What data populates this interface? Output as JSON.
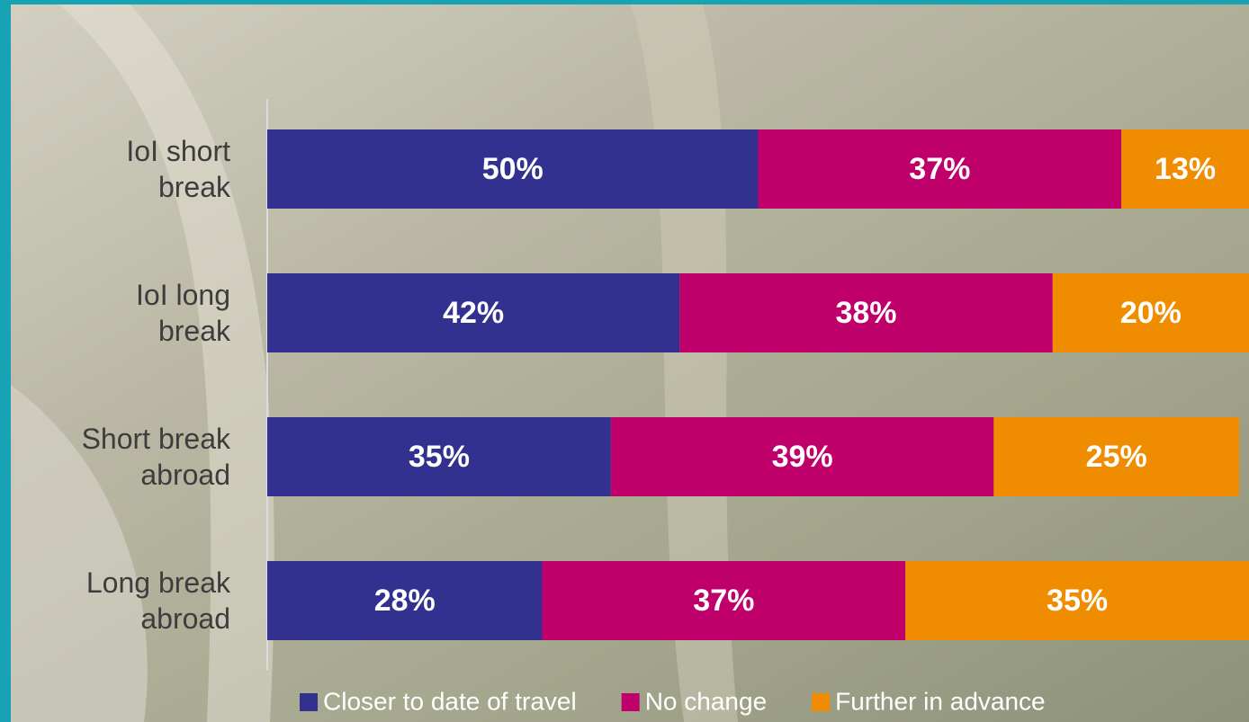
{
  "chart_data": {
    "type": "stacked-bar-horizontal",
    "categories": [
      "IoI short\nbreak",
      "IoI long\nbreak",
      "Short break\nabroad",
      "Long break\nabroad"
    ],
    "series": [
      {
        "name": "Closer to date of travel",
        "color": "#33318f",
        "values": [
          50,
          42,
          35,
          28
        ],
        "value_labels": [
          "50%",
          "42%",
          "35%",
          "28%"
        ]
      },
      {
        "name": "No change",
        "color": "#c0006a",
        "values": [
          37,
          38,
          39,
          37
        ],
        "value_labels": [
          "37%",
          "38%",
          "39%",
          "37%"
        ]
      },
      {
        "name": "Further in advance",
        "color": "#f08c00",
        "values": [
          13,
          20,
          25,
          35
        ],
        "value_labels": [
          "13%",
          "20%",
          "25%",
          "35%"
        ]
      }
    ],
    "xlim": [
      0,
      100
    ],
    "legend": "bottom"
  }
}
